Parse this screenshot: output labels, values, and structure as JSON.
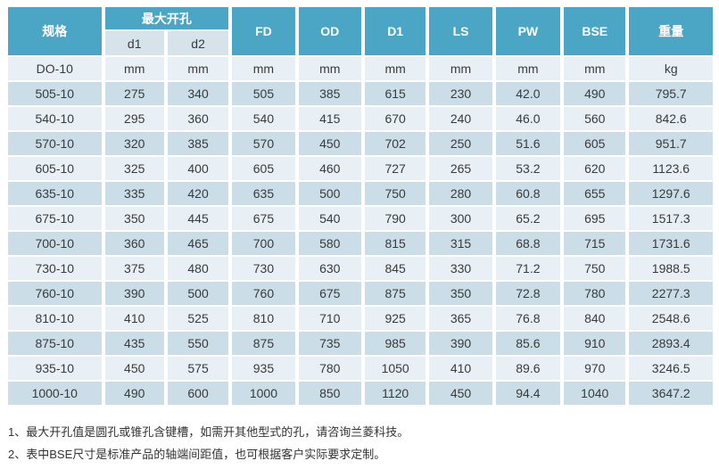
{
  "colors": {
    "header_teal": "#4BA6C5",
    "subheader_bg": "#D6E3EA",
    "row_dark": "#CBDDE7",
    "row_light": "#E9F0F5",
    "text": "#3A3A3A"
  },
  "table": {
    "header": {
      "spec": "规格",
      "max_bore_group": "最大开孔",
      "sub_columns": [
        "d1",
        "d2"
      ],
      "columns": [
        "FD",
        "OD",
        "D1",
        "LS",
        "PW",
        "BSE",
        "重量"
      ]
    },
    "unit_row": {
      "model": "DO-10",
      "units": [
        "mm",
        "mm",
        "mm",
        "mm",
        "mm",
        "mm",
        "mm",
        "mm",
        "kg"
      ]
    },
    "rows": [
      [
        "505-10",
        "275",
        "340",
        "505",
        "385",
        "615",
        "230",
        "42.0",
        "490",
        "795.7"
      ],
      [
        "540-10",
        "295",
        "360",
        "540",
        "415",
        "670",
        "240",
        "46.0",
        "560",
        "842.6"
      ],
      [
        "570-10",
        "320",
        "385",
        "570",
        "450",
        "702",
        "250",
        "51.6",
        "605",
        "951.7"
      ],
      [
        "605-10",
        "325",
        "400",
        "605",
        "460",
        "727",
        "265",
        "53.2",
        "620",
        "1123.6"
      ],
      [
        "635-10",
        "335",
        "420",
        "635",
        "500",
        "750",
        "280",
        "60.8",
        "655",
        "1297.6"
      ],
      [
        "675-10",
        "350",
        "445",
        "675",
        "540",
        "790",
        "300",
        "65.2",
        "695",
        "1517.3"
      ],
      [
        "700-10",
        "360",
        "465",
        "700",
        "580",
        "815",
        "315",
        "68.8",
        "715",
        "1731.6"
      ],
      [
        "730-10",
        "375",
        "480",
        "730",
        "630",
        "845",
        "330",
        "71.2",
        "750",
        "1988.5"
      ],
      [
        "760-10",
        "390",
        "500",
        "760",
        "675",
        "875",
        "350",
        "72.8",
        "780",
        "2277.3"
      ],
      [
        "810-10",
        "410",
        "525",
        "810",
        "710",
        "925",
        "365",
        "76.8",
        "840",
        "2548.6"
      ],
      [
        "875-10",
        "435",
        "550",
        "875",
        "735",
        "985",
        "390",
        "85.6",
        "910",
        "2893.4"
      ],
      [
        "935-10",
        "450",
        "575",
        "935",
        "780",
        "1050",
        "410",
        "89.6",
        "970",
        "3246.5"
      ],
      [
        "1000-10",
        "490",
        "600",
        "1000",
        "850",
        "1120",
        "450",
        "94.4",
        "1040",
        "3647.2"
      ]
    ]
  },
  "footnotes": [
    "1、最大开孔值是圆孔或锥孔含键槽，如需开其他型式的孔，请咨询兰菱科技。",
    "2、表中BSE尺寸是标准产品的轴端间距值，也可根据客户实际要求定制。"
  ]
}
